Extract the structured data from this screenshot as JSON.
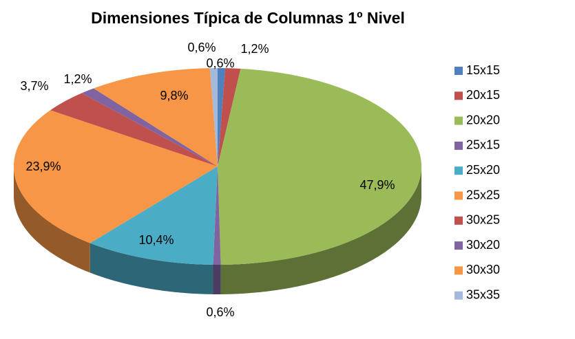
{
  "chart_data": {
    "type": "pie3d",
    "title": "Dimensiones Típica de Columnas 1º Nivel",
    "categories": [
      "15x15",
      "20x15",
      "20x20",
      "25x15",
      "25x20",
      "25x25",
      "30x25",
      "30x20",
      "30x30",
      "35x35"
    ],
    "values": [
      0.6,
      1.2,
      47.9,
      0.6,
      10.4,
      23.9,
      3.7,
      1.2,
      9.8,
      0.6
    ],
    "value_labels": [
      "0,6%",
      "1,2%",
      "47,9%",
      "0,6%",
      "10,4%",
      "23,9%",
      "3,7%",
      "1,2%",
      "9,8%",
      "0,6%"
    ],
    "colors": [
      "#4f81bd",
      "#c0504d",
      "#9bbb59",
      "#8064a2",
      "#4bacc6",
      "#f79646",
      "#c0504d",
      "#8064a2",
      "#f79646",
      "#a5b9db"
    ],
    "legend": "right"
  }
}
